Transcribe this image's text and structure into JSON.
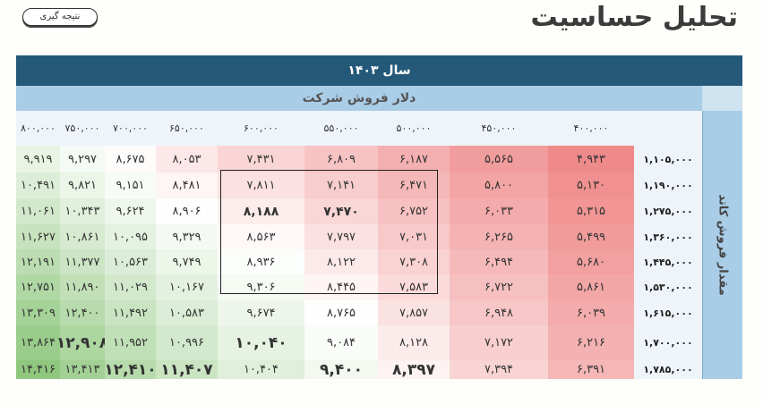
{
  "title": "تحلیل حساسیت",
  "button_label": "نتیجه گیری",
  "table": {
    "year_header": "سال ۱۴۰۳",
    "dollar_header": "دلار فروش شرکت",
    "row_axis_label": "مقدار فروش کاتد",
    "columns": [
      "۸۰۰,۰۰۰",
      "۷۵۰,۰۰۰",
      "۷۰۰,۰۰۰",
      "۶۵۰,۰۰۰",
      "۶۰۰,۰۰۰",
      "۵۵۰,۰۰۰",
      "۵۰۰,۰۰۰",
      "۴۵۰,۰۰۰",
      "۴۰۰,۰۰۰"
    ],
    "rows": [
      {
        "label": "۱,۱۰۵,۰۰۰",
        "cells": [
          "۹,۹۱۹",
          "۹,۲۹۷",
          "۸,۶۷۵",
          "۸,۰۵۳",
          "۷,۴۳۱",
          "۶,۸۰۹",
          "۶,۱۸۷",
          "۵,۵۶۵",
          "۴,۹۴۳"
        ]
      },
      {
        "label": "۱,۱۹۰,۰۰۰",
        "cells": [
          "۱۰,۴۹۱",
          "۹,۸۲۱",
          "۹,۱۵۱",
          "۸,۴۸۱",
          "۷,۸۱۱",
          "۷,۱۴۱",
          "۶,۴۷۱",
          "۵,۸۰۰",
          "۵,۱۳۰"
        ]
      },
      {
        "label": "۱,۲۷۵,۰۰۰",
        "cells": [
          "۱۱,۰۶۱",
          "۱۰,۳۴۳",
          "۹,۶۲۴",
          "۸,۹۰۶",
          "۸,۱۸۸",
          "۷,۴۷۰",
          "۶,۷۵۲",
          "۶,۰۳۳",
          "۵,۳۱۵"
        ]
      },
      {
        "label": "۱,۳۶۰,۰۰۰",
        "cells": [
          "۱۱,۶۲۷",
          "۱۰,۸۶۱",
          "۱۰,۰۹۵",
          "۹,۳۲۹",
          "۸,۵۶۳",
          "۷,۷۹۷",
          "۷,۰۳۱",
          "۶,۲۶۵",
          "۵,۴۹۹"
        ]
      },
      {
        "label": "۱,۴۴۵,۰۰۰",
        "cells": [
          "۱۲,۱۹۱",
          "۱۱,۳۷۷",
          "۱۰,۵۶۳",
          "۹,۷۴۹",
          "۸,۹۳۶",
          "۸,۱۲۲",
          "۷,۳۰۸",
          "۶,۴۹۴",
          "۵,۶۸۰"
        ]
      },
      {
        "label": "۱,۵۳۰,۰۰۰",
        "cells": [
          "۱۲,۷۵۱",
          "۱۱,۸۹۰",
          "۱۱,۰۲۹",
          "۱۰,۱۶۷",
          "۹,۳۰۶",
          "۸,۴۴۵",
          "۷,۵۸۳",
          "۶,۷۲۲",
          "۵,۸۶۱"
        ]
      },
      {
        "label": "۱,۶۱۵,۰۰۰",
        "cells": [
          "۱۳,۳۰۹",
          "۱۲,۴۰۰",
          "۱۱,۴۹۲",
          "۱۰,۵۸۳",
          "۹,۶۷۴",
          "۸,۷۶۵",
          "۷,۸۵۷",
          "۶,۹۴۸",
          "۶,۰۳۹"
        ]
      },
      {
        "label": "۱,۷۰۰,۰۰۰",
        "cells": [
          "۱۳,۸۶۴",
          "۱۲,۹۰۸",
          "۱۱,۹۵۲",
          "۱۰,۹۹۶",
          "۱۰,۰۴۰",
          "۹,۰۸۴",
          "۸,۱۲۸",
          "۷,۱۷۲",
          "۶,۲۱۶"
        ]
      },
      {
        "label": "۱,۷۸۵,۰۰۰",
        "cells": [
          "۱۴,۴۱۶",
          "۱۳,۴۱۳",
          "۱۲,۴۱۰",
          "۱۱,۴۰۷",
          "۱۰,۴۰۴",
          "۹,۴۰۰",
          "۸,۳۹۷",
          "۷,۳۹۴",
          "۶,۳۹۱"
        ]
      }
    ],
    "colors": {
      "year_header_bg": "#24597a",
      "sub_header_bg": "#a9cde6",
      "low_value": "#ef8a8a",
      "mid_value": "#ffffff",
      "high_value": "#8fc77e"
    }
  }
}
